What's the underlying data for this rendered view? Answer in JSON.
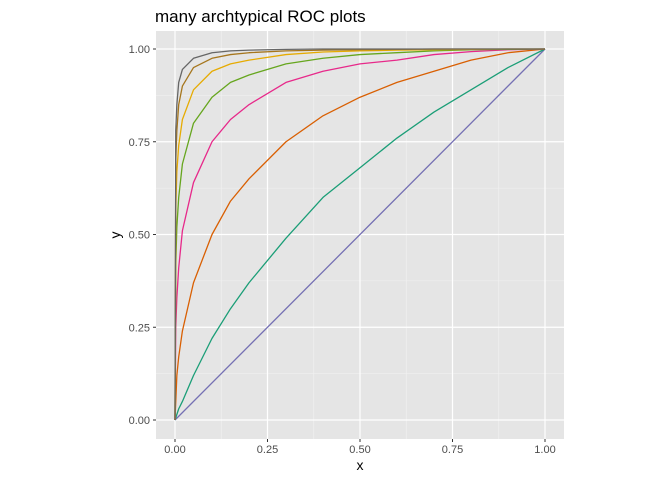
{
  "chart_data": {
    "type": "line",
    "title": "many archtypical ROC plots",
    "xlabel": "x",
    "ylabel": "y",
    "xlim": [
      0,
      1
    ],
    "ylim": [
      0,
      1
    ],
    "x_ticks": [
      "0.00",
      "0.25",
      "0.50",
      "0.75",
      "1.00"
    ],
    "y_ticks": [
      "0.00",
      "0.25",
      "0.50",
      "0.75",
      "1.00"
    ],
    "grid": true,
    "panel_background": "#e5e5e5",
    "legend": "none",
    "series": [
      {
        "color": "#7570b3",
        "x": [
          0,
          1
        ],
        "y": [
          0,
          1
        ]
      },
      {
        "color": "#1b9e77",
        "x": [
          0,
          0.01,
          0.02,
          0.05,
          0.1,
          0.15,
          0.2,
          0.3,
          0.4,
          0.5,
          0.6,
          0.7,
          0.8,
          0.9,
          1.0
        ],
        "y": [
          0,
          0.03,
          0.05,
          0.12,
          0.22,
          0.3,
          0.37,
          0.49,
          0.6,
          0.68,
          0.76,
          0.83,
          0.89,
          0.95,
          1.0
        ]
      },
      {
        "color": "#d95f02",
        "x": [
          0,
          0.005,
          0.01,
          0.02,
          0.05,
          0.1,
          0.15,
          0.2,
          0.3,
          0.4,
          0.5,
          0.6,
          0.7,
          0.8,
          0.9,
          1.0
        ],
        "y": [
          0,
          0.12,
          0.17,
          0.24,
          0.37,
          0.5,
          0.59,
          0.65,
          0.75,
          0.82,
          0.87,
          0.91,
          0.94,
          0.97,
          0.99,
          1.0
        ]
      },
      {
        "color": "#e7298a",
        "x": [
          0,
          0.002,
          0.005,
          0.01,
          0.02,
          0.05,
          0.1,
          0.15,
          0.2,
          0.3,
          0.4,
          0.5,
          0.6,
          0.7,
          0.8,
          0.9,
          1.0
        ],
        "y": [
          0,
          0.25,
          0.33,
          0.41,
          0.51,
          0.64,
          0.75,
          0.81,
          0.85,
          0.91,
          0.94,
          0.96,
          0.97,
          0.985,
          0.993,
          0.998,
          1.0
        ]
      },
      {
        "color": "#66a61e",
        "x": [
          0,
          0.002,
          0.005,
          0.01,
          0.02,
          0.05,
          0.1,
          0.15,
          0.2,
          0.3,
          0.4,
          0.5,
          0.6,
          0.7,
          0.8,
          0.9,
          1.0
        ],
        "y": [
          0,
          0.42,
          0.52,
          0.6,
          0.69,
          0.8,
          0.87,
          0.91,
          0.93,
          0.96,
          0.975,
          0.985,
          0.99,
          0.995,
          0.998,
          0.999,
          1.0
        ]
      },
      {
        "color": "#e6ab02",
        "x": [
          0,
          0.002,
          0.005,
          0.01,
          0.02,
          0.05,
          0.1,
          0.15,
          0.2,
          0.3,
          0.4,
          0.5,
          0.6,
          0.7,
          0.8,
          0.9,
          1.0
        ],
        "y": [
          0,
          0.57,
          0.67,
          0.74,
          0.81,
          0.89,
          0.94,
          0.96,
          0.97,
          0.985,
          0.992,
          0.995,
          0.997,
          0.998,
          0.999,
          1.0,
          1.0
        ]
      },
      {
        "color": "#a6761d",
        "x": [
          0,
          0.002,
          0.005,
          0.01,
          0.02,
          0.05,
          0.1,
          0.15,
          0.2,
          0.3,
          0.4,
          0.5,
          0.6,
          0.7,
          0.8,
          0.9,
          1.0
        ],
        "y": [
          0,
          0.7,
          0.78,
          0.85,
          0.9,
          0.95,
          0.975,
          0.985,
          0.99,
          0.995,
          0.997,
          0.998,
          0.999,
          1.0,
          1.0,
          1.0,
          1.0
        ]
      },
      {
        "color": "#666666",
        "x": [
          0,
          0.002,
          0.005,
          0.01,
          0.02,
          0.05,
          0.1,
          0.15,
          0.2,
          0.3,
          0.4,
          0.5,
          0.6,
          0.7,
          0.8,
          0.9,
          1.0
        ],
        "y": [
          0,
          0.78,
          0.85,
          0.91,
          0.945,
          0.975,
          0.99,
          0.995,
          0.997,
          0.999,
          1.0,
          1.0,
          1.0,
          1.0,
          1.0,
          1.0,
          1.0
        ]
      }
    ]
  }
}
